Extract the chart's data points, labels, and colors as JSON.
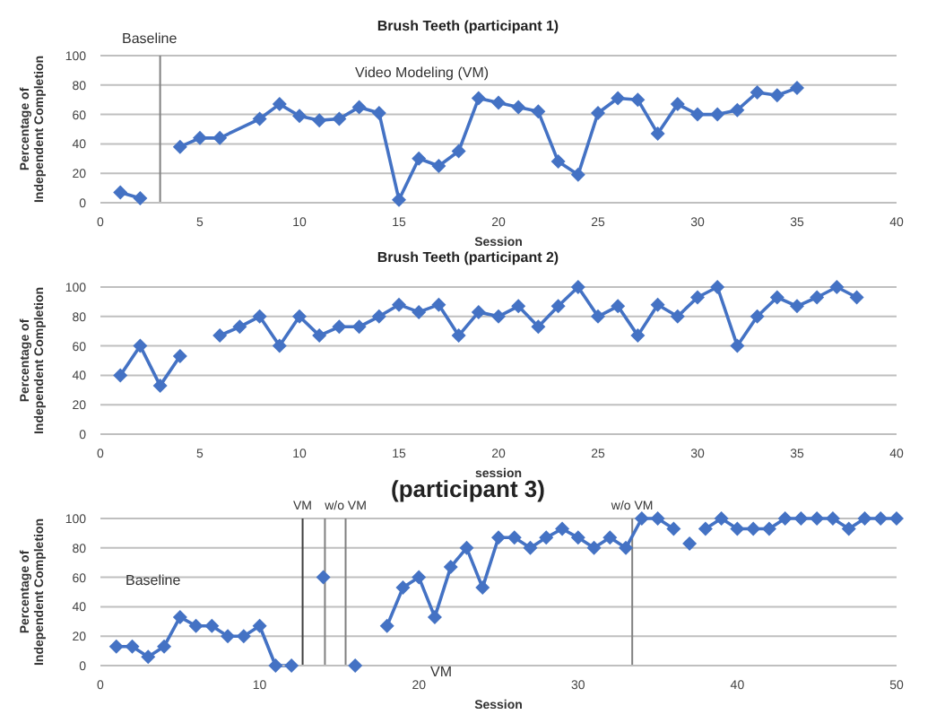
{
  "chart_data": [
    {
      "type": "line",
      "title": "Brush Teeth (participant 1)",
      "xlabel": "Session",
      "ylabel": "Percentage of Independent Completion",
      "xlim": [
        0,
        40
      ],
      "xticks": [
        0,
        5,
        10,
        15,
        20,
        25,
        30,
        35,
        40
      ],
      "ylim": [
        0,
        100
      ],
      "yticks": [
        0,
        20,
        40,
        60,
        80,
        100
      ],
      "grid": "y",
      "marker": "diamond",
      "series": [
        {
          "color": "#4472c4",
          "x": [
            1,
            2
          ],
          "values": [
            7,
            3
          ]
        },
        {
          "color": "#4472c4",
          "x": [
            4,
            5,
            6,
            8,
            9,
            10,
            11,
            12,
            13,
            14,
            15,
            16,
            17,
            18,
            19,
            20,
            21,
            22,
            23,
            24,
            25,
            26,
            27,
            28,
            29,
            30,
            31,
            32,
            33,
            34,
            35
          ],
          "values": [
            38,
            44,
            44,
            57,
            67,
            59,
            56,
            57,
            65,
            61,
            2,
            30,
            25,
            35,
            71,
            68,
            65,
            62,
            28,
            19,
            61,
            71,
            70,
            47,
            67,
            60,
            60,
            63,
            75,
            73,
            78
          ]
        }
      ],
      "ref_lines": [
        {
          "axis": "x",
          "value": 3,
          "label": null,
          "color": "#808080"
        }
      ],
      "annotations": [
        "Baseline",
        "Video Modeling (VM)"
      ]
    },
    {
      "type": "line",
      "title": "Brush Teeth (participant 2)",
      "xlabel": "session",
      "ylabel": "Percentage of Independent Completion",
      "xlim": [
        0,
        40
      ],
      "xticks": [
        0,
        5,
        10,
        15,
        20,
        25,
        30,
        35,
        40
      ],
      "ylim": [
        0,
        100
      ],
      "yticks": [
        0,
        20,
        40,
        60,
        80,
        100
      ],
      "grid": "y",
      "marker": "diamond",
      "series": [
        {
          "color": "#4472c4",
          "x": [
            1,
            2,
            3,
            4
          ],
          "values": [
            40,
            60,
            33,
            53
          ]
        },
        {
          "color": "#4472c4",
          "x": [
            6,
            7,
            8,
            9,
            10,
            11,
            12,
            13,
            14,
            15,
            16,
            17,
            18,
            19,
            20,
            21,
            22,
            23,
            24,
            25,
            26,
            27,
            28,
            29,
            30,
            31,
            32,
            33,
            34,
            35,
            36,
            37,
            38
          ],
          "values": [
            67,
            73,
            80,
            60,
            80,
            67,
            73,
            73,
            80,
            88,
            83,
            88,
            67,
            83,
            80,
            87,
            73,
            87,
            100,
            80,
            87,
            67,
            88,
            80,
            93,
            100,
            60,
            80,
            93,
            87,
            93,
            100,
            93
          ]
        }
      ]
    },
    {
      "type": "line",
      "title": "(participant 3)",
      "xlabel": "Session",
      "ylabel": "Percentage of Independent Completion",
      "xlim": [
        0,
        50
      ],
      "xticks": [
        0,
        10,
        20,
        30,
        40,
        50
      ],
      "ylim": [
        0,
        100
      ],
      "yticks": [
        0,
        20,
        40,
        60,
        80,
        100
      ],
      "grid": "y",
      "marker": "diamond",
      "series": [
        {
          "color": "#4472c4",
          "x": [
            1,
            2,
            3,
            4,
            5,
            6,
            7,
            8,
            9,
            10,
            11,
            12
          ],
          "values": [
            13,
            13,
            6,
            13,
            33,
            27,
            27,
            20,
            20,
            27,
            0,
            0
          ]
        },
        {
          "color": "#4472c4",
          "x": [
            14
          ],
          "values": [
            60
          ]
        },
        {
          "color": "#4472c4",
          "x": [
            16
          ],
          "values": [
            0
          ]
        },
        {
          "color": "#4472c4",
          "x": [
            18,
            19,
            20,
            21,
            22,
            23,
            24,
            25,
            26,
            27,
            28,
            29,
            30,
            31,
            32,
            33,
            34,
            35,
            36
          ],
          "values": [
            27,
            53,
            60,
            33,
            67,
            80,
            53,
            87,
            87,
            80,
            87,
            93,
            87,
            80,
            87,
            80,
            100,
            100,
            93
          ]
        },
        {
          "color": "#4472c4",
          "x": [
            37
          ],
          "values": [
            83
          ]
        },
        {
          "color": "#4472c4",
          "x": [
            38,
            39,
            40,
            41,
            42,
            43,
            44,
            45,
            46,
            47,
            48,
            49,
            50
          ],
          "values": [
            93,
            100,
            93,
            93,
            93,
            100,
            100,
            100,
            100,
            93,
            100,
            100,
            100
          ]
        }
      ],
      "ref_lines": [
        {
          "axis": "x",
          "value": 12.7,
          "label": "VM",
          "color": "#404040"
        },
        {
          "axis": "x",
          "value": 14.1,
          "label": null,
          "color": "#808080"
        },
        {
          "axis": "x",
          "value": 15.4,
          "label": "w/o VM",
          "color": "#808080"
        },
        {
          "axis": "x",
          "value": 33.4,
          "label": "w/o VM",
          "color": "#808080"
        }
      ],
      "annotations": [
        "Baseline",
        "VM"
      ]
    }
  ]
}
